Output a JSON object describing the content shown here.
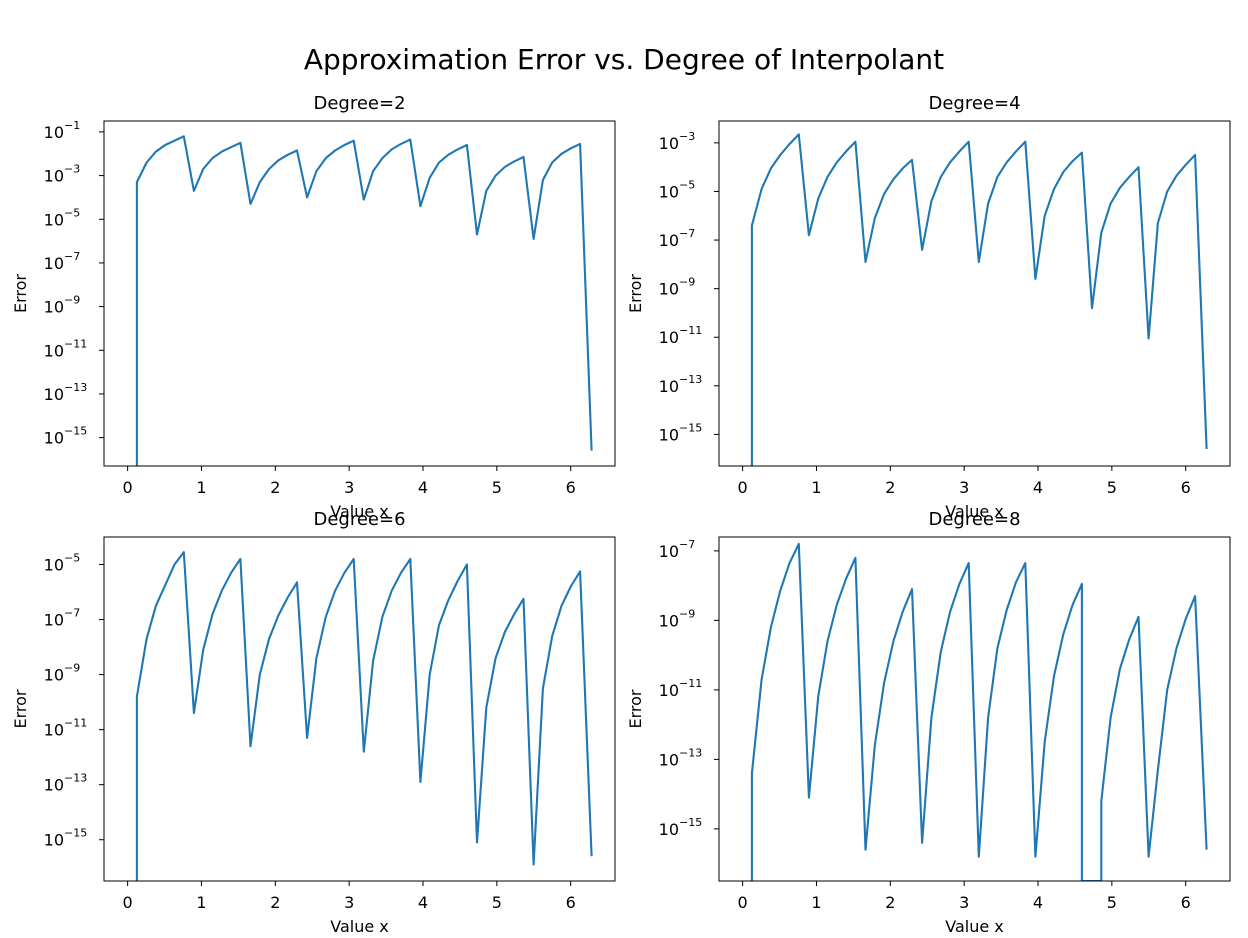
{
  "figure": {
    "title": "Approximation Error vs. Degree of Interpolant"
  },
  "colors": {
    "line": "#1f77b4",
    "axes": "#000000",
    "background": "#ffffff"
  },
  "chart_data": [
    {
      "type": "line",
      "title": "Degree=2",
      "xlabel": "Value x",
      "ylabel": "Error",
      "yscale": "log",
      "xlim": [
        -0.32,
        6.6
      ],
      "ylim_exp": [
        -16.3,
        -0.5
      ],
      "xticks": [
        0,
        1,
        2,
        3,
        4,
        5,
        6
      ],
      "yticks_exp": [
        -15,
        -13,
        -11,
        -9,
        -7,
        -5,
        -3,
        -1
      ],
      "grid": false,
      "series": [
        {
          "x": [
            0.126,
            0.126,
            0.257,
            0.383,
            0.509,
            0.635,
            0.761,
            0.898,
            1.023,
            1.149,
            1.275,
            1.401,
            1.527,
            1.664,
            1.79,
            1.916,
            2.042,
            2.168,
            2.294,
            2.431,
            2.557,
            2.683,
            2.809,
            2.935,
            3.061,
            3.198,
            3.324,
            3.45,
            3.576,
            3.702,
            3.828,
            3.965,
            4.09,
            4.216,
            4.342,
            4.468,
            4.594,
            4.731,
            4.857,
            4.983,
            5.109,
            5.235,
            5.361,
            5.498,
            5.624,
            5.75,
            5.876,
            6.002,
            6.128,
            6.283
          ],
          "y_exp": [
            -16.3,
            -3.3,
            -2.4,
            -1.9,
            -1.6,
            -1.4,
            -1.2,
            -3.7,
            -2.7,
            -2.2,
            -1.9,
            -1.7,
            -1.5,
            -4.3,
            -3.3,
            -2.7,
            -2.3,
            -2.05,
            -1.85,
            -4.0,
            -2.8,
            -2.2,
            -1.85,
            -1.6,
            -1.4,
            -4.1,
            -2.8,
            -2.2,
            -1.8,
            -1.55,
            -1.35,
            -4.4,
            -3.1,
            -2.4,
            -2.05,
            -1.8,
            -1.6,
            -5.7,
            -3.7,
            -3.0,
            -2.6,
            -2.35,
            -2.15,
            -5.9,
            -3.2,
            -2.4,
            -2.0,
            -1.75,
            -1.55,
            -15.6
          ]
        }
      ]
    },
    {
      "type": "line",
      "title": "Degree=4",
      "xlabel": "Value x",
      "ylabel": "Error",
      "yscale": "log",
      "xlim": [
        -0.32,
        6.6
      ],
      "ylim_exp": [
        -16.3,
        -2.1
      ],
      "xticks": [
        0,
        1,
        2,
        3,
        4,
        5,
        6
      ],
      "yticks_exp": [
        -15,
        -13,
        -11,
        -9,
        -7,
        -5,
        -3
      ],
      "grid": false,
      "series": [
        {
          "x": [
            0.126,
            0.126,
            0.257,
            0.383,
            0.509,
            0.635,
            0.761,
            0.898,
            1.023,
            1.149,
            1.275,
            1.401,
            1.527,
            1.664,
            1.79,
            1.916,
            2.042,
            2.168,
            2.294,
            2.431,
            2.557,
            2.683,
            2.809,
            2.935,
            3.061,
            3.198,
            3.324,
            3.45,
            3.576,
            3.702,
            3.828,
            3.965,
            4.09,
            4.216,
            4.342,
            4.468,
            4.594,
            4.731,
            4.857,
            4.983,
            5.109,
            5.235,
            5.361,
            5.498,
            5.624,
            5.75,
            5.876,
            6.002,
            6.128,
            6.283
          ],
          "y_exp": [
            -16.3,
            -6.4,
            -4.9,
            -4.05,
            -3.5,
            -3.05,
            -2.65,
            -6.8,
            -5.3,
            -4.4,
            -3.8,
            -3.35,
            -2.95,
            -7.9,
            -6.1,
            -5.1,
            -4.5,
            -4.05,
            -3.7,
            -7.4,
            -5.4,
            -4.4,
            -3.8,
            -3.35,
            -2.95,
            -7.9,
            -5.5,
            -4.4,
            -3.8,
            -3.35,
            -2.95,
            -8.6,
            -6.0,
            -4.9,
            -4.2,
            -3.75,
            -3.4,
            -9.8,
            -6.7,
            -5.5,
            -4.85,
            -4.4,
            -4.0,
            -11.05,
            -6.3,
            -5.0,
            -4.35,
            -3.9,
            -3.5,
            -15.6
          ]
        }
      ]
    },
    {
      "type": "line",
      "title": "Degree=6",
      "xlabel": "Value x",
      "ylabel": "Error",
      "yscale": "log",
      "xlim": [
        -0.32,
        6.6
      ],
      "ylim_exp": [
        -16.5,
        -4.0
      ],
      "xticks": [
        0,
        1,
        2,
        3,
        4,
        5,
        6
      ],
      "yticks_exp": [
        -15,
        -13,
        -11,
        -9,
        -7,
        -5
      ],
      "grid": false,
      "series": [
        {
          "x": [
            0.126,
            0.126,
            0.257,
            0.383,
            0.509,
            0.635,
            0.761,
            0.898,
            1.023,
            1.149,
            1.275,
            1.401,
            1.527,
            1.664,
            1.79,
            1.916,
            2.042,
            2.168,
            2.294,
            2.431,
            2.557,
            2.683,
            2.809,
            2.935,
            3.061,
            3.198,
            3.324,
            3.45,
            3.576,
            3.702,
            3.828,
            3.965,
            4.09,
            4.216,
            4.342,
            4.468,
            4.594,
            4.731,
            4.857,
            4.983,
            5.109,
            5.235,
            5.361,
            5.498,
            5.624,
            5.75,
            5.876,
            6.002,
            6.128,
            6.283
          ],
          "y_exp": [
            -16.5,
            -9.8,
            -7.7,
            -6.5,
            -5.75,
            -5.0,
            -4.55,
            -10.4,
            -8.1,
            -6.8,
            -5.95,
            -5.3,
            -4.8,
            -11.6,
            -9.0,
            -7.7,
            -6.85,
            -6.2,
            -5.65,
            -11.3,
            -8.4,
            -6.9,
            -5.95,
            -5.3,
            -4.8,
            -11.8,
            -8.5,
            -6.9,
            -5.95,
            -5.3,
            -4.8,
            -12.9,
            -9.0,
            -7.2,
            -6.3,
            -5.6,
            -5.0,
            -15.1,
            -10.2,
            -8.4,
            -7.45,
            -6.8,
            -6.25,
            -15.9,
            -9.5,
            -7.6,
            -6.5,
            -5.8,
            -5.25,
            -15.6
          ]
        }
      ]
    },
    {
      "type": "line",
      "title": "Degree=8",
      "xlabel": "Value x",
      "ylabel": "Error",
      "yscale": "log",
      "xlim": [
        -0.32,
        6.6
      ],
      "ylim_exp": [
        -16.5,
        -6.6
      ],
      "xticks": [
        0,
        1,
        2,
        3,
        4,
        5,
        6
      ],
      "yticks_exp": [
        -15,
        -13,
        -11,
        -9,
        -7
      ],
      "grid": false,
      "series": [
        {
          "x": [
            0.126,
            0.126,
            0.257,
            0.383,
            0.509,
            0.635,
            0.761,
            0.898,
            1.023,
            1.149,
            1.275,
            1.401,
            1.527,
            1.664,
            1.79,
            1.916,
            2.042,
            2.168,
            2.294,
            2.431,
            2.557,
            2.683,
            2.809,
            2.935,
            3.061,
            3.198,
            3.324,
            3.45,
            3.576,
            3.702,
            3.828,
            3.965,
            4.09,
            4.216,
            4.342,
            4.468,
            4.594,
            4.594,
            4.857,
            4.857,
            4.983,
            5.109,
            5.235,
            5.361,
            5.498,
            5.624,
            5.75,
            5.876,
            6.002,
            6.128,
            6.283
          ],
          "y_exp": [
            -16.5,
            -13.4,
            -10.7,
            -9.2,
            -8.15,
            -7.35,
            -6.8,
            -14.1,
            -11.2,
            -9.6,
            -8.55,
            -7.8,
            -7.2,
            -15.6,
            -12.6,
            -10.8,
            -9.6,
            -8.75,
            -8.1,
            -15.4,
            -11.8,
            -9.9,
            -8.75,
            -7.95,
            -7.35,
            -15.8,
            -11.8,
            -9.8,
            -8.7,
            -7.9,
            -7.35,
            -15.8,
            -12.5,
            -10.6,
            -9.4,
            -8.55,
            -7.95,
            -16.5,
            -16.5,
            -14.2,
            -11.8,
            -10.4,
            -9.55,
            -8.9,
            -15.8,
            -13.3,
            -11.0,
            -9.8,
            -8.95,
            -8.3,
            -15.6
          ]
        }
      ]
    }
  ]
}
